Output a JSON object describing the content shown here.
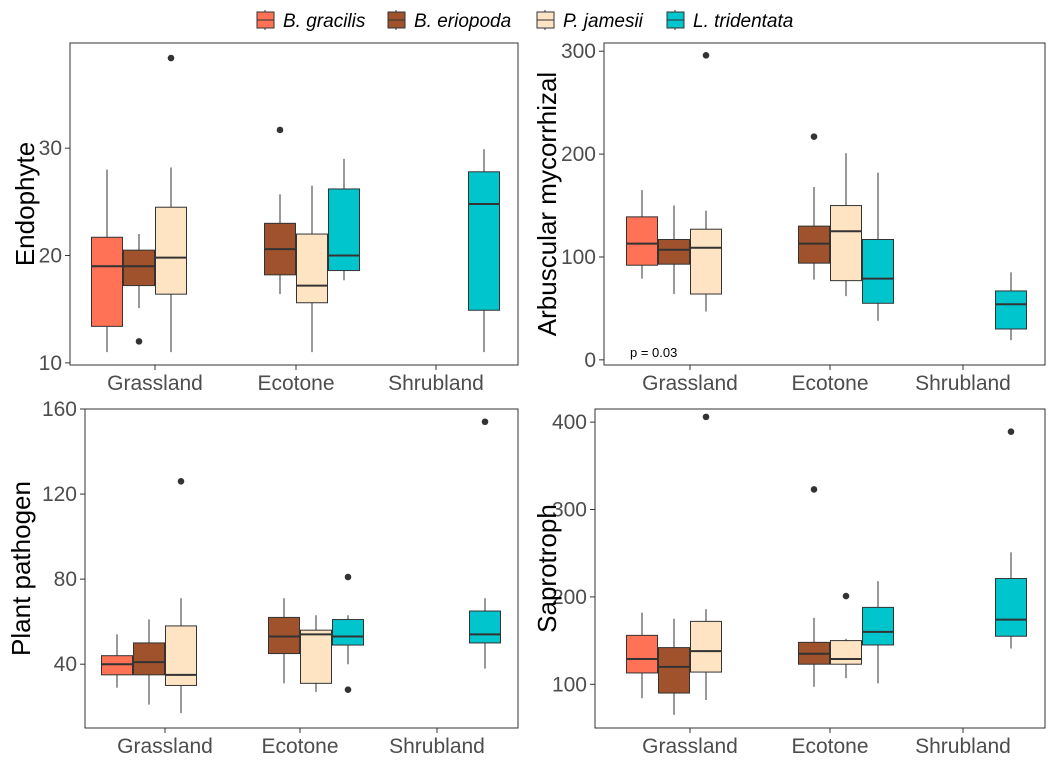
{
  "legend": {
    "items": [
      {
        "label": "B. gracilis",
        "color": "#FF7256"
      },
      {
        "label": "B. eriopoda",
        "color": "#A0522D"
      },
      {
        "label": "P. jamesii",
        "color": "#FFE4C4"
      },
      {
        "label": "L. tridentata",
        "color": "#00C5CD"
      }
    ]
  },
  "chart_data": [
    {
      "type": "box",
      "ylabel": "Endophyte",
      "categories": [
        "Grassland",
        "Ecotone",
        "Shrubland"
      ],
      "ylim": [
        9.8,
        39.8
      ],
      "yticks": [
        10,
        20,
        30
      ],
      "grid": false,
      "annotation": "",
      "boxes": [
        {
          "category": "Grassland",
          "series": "B. gracilis",
          "min": 11,
          "q1": 13.4,
          "median": 19,
          "q3": 21.7,
          "max": 28,
          "outliers": []
        },
        {
          "category": "Grassland",
          "series": "B. eriopoda",
          "min": 15.1,
          "q1": 17.2,
          "median": 19,
          "q3": 20.5,
          "max": 22,
          "outliers": [
            12
          ]
        },
        {
          "category": "Grassland",
          "series": "P. jamesii",
          "min": 11,
          "q1": 16.4,
          "median": 19.8,
          "q3": 24.5,
          "max": 28.2,
          "outliers": [
            38.4
          ]
        },
        {
          "category": "Ecotone",
          "series": "B. eriopoda",
          "min": 16.4,
          "q1": 18.2,
          "median": 20.6,
          "q3": 23,
          "max": 25.7,
          "outliers": [
            31.7
          ]
        },
        {
          "category": "Ecotone",
          "series": "P. jamesii",
          "min": 11,
          "q1": 15.6,
          "median": 17.2,
          "q3": 22,
          "max": 26.5,
          "outliers": []
        },
        {
          "category": "Ecotone",
          "series": "L. tridentata",
          "min": 17.7,
          "q1": 18.6,
          "median": 20,
          "q3": 26.2,
          "max": 29,
          "outliers": []
        },
        {
          "category": "Shrubland",
          "series": "L. tridentata",
          "min": 11,
          "q1": 14.9,
          "median": 24.8,
          "q3": 27.8,
          "max": 29.9,
          "outliers": []
        }
      ]
    },
    {
      "type": "box",
      "ylabel": "Arbuscular mycorrhizal",
      "categories": [
        "Grassland",
        "Ecotone",
        "Shrubland"
      ],
      "ylim": [
        -5,
        308
      ],
      "yticks": [
        0,
        100,
        200,
        300
      ],
      "grid": false,
      "annotation": "p = 0.03",
      "boxes": [
        {
          "category": "Grassland",
          "series": "B. gracilis",
          "min": 79,
          "q1": 92,
          "median": 113,
          "q3": 139,
          "max": 165,
          "outliers": []
        },
        {
          "category": "Grassland",
          "series": "B. eriopoda",
          "min": 64,
          "q1": 93,
          "median": 107,
          "q3": 117,
          "max": 150,
          "outliers": []
        },
        {
          "category": "Grassland",
          "series": "P. jamesii",
          "min": 47,
          "q1": 64,
          "median": 109,
          "q3": 127,
          "max": 145,
          "outliers": [
            296
          ]
        },
        {
          "category": "Ecotone",
          "series": "B. eriopoda",
          "min": 78,
          "q1": 94,
          "median": 113,
          "q3": 130,
          "max": 168,
          "outliers": [
            217
          ]
        },
        {
          "category": "Ecotone",
          "series": "P. jamesii",
          "min": 62,
          "q1": 77,
          "median": 125,
          "q3": 150,
          "max": 201,
          "outliers": []
        },
        {
          "category": "Ecotone",
          "series": "L. tridentata",
          "min": 38,
          "q1": 55,
          "median": 79,
          "q3": 117,
          "max": 182,
          "outliers": []
        },
        {
          "category": "Shrubland",
          "series": "L. tridentata",
          "min": 19,
          "q1": 30,
          "median": 54,
          "q3": 67,
          "max": 85,
          "outliers": []
        }
      ]
    },
    {
      "type": "box",
      "ylabel": "Plant pathogen",
      "categories": [
        "Grassland",
        "Ecotone",
        "Shrubland"
      ],
      "ylim": [
        10,
        160
      ],
      "yticks": [
        40,
        80,
        120,
        160
      ],
      "grid": false,
      "annotation": "",
      "boxes": [
        {
          "category": "Grassland",
          "series": "B. gracilis",
          "min": 29,
          "q1": 35,
          "median": 40,
          "q3": 44,
          "max": 54,
          "outliers": []
        },
        {
          "category": "Grassland",
          "series": "B. eriopoda",
          "min": 21,
          "q1": 35,
          "median": 41,
          "q3": 50,
          "max": 61,
          "outliers": []
        },
        {
          "category": "Grassland",
          "series": "P. jamesii",
          "min": 17,
          "q1": 30,
          "median": 35,
          "q3": 58,
          "max": 71,
          "outliers": [
            126
          ]
        },
        {
          "category": "Ecotone",
          "series": "B. eriopoda",
          "min": 31,
          "q1": 45,
          "median": 53,
          "q3": 62,
          "max": 71,
          "outliers": []
        },
        {
          "category": "Ecotone",
          "series": "P. jamesii",
          "min": 27,
          "q1": 31,
          "median": 54,
          "q3": 56,
          "max": 63,
          "outliers": []
        },
        {
          "category": "Ecotone",
          "series": "L. tridentata",
          "min": 40,
          "q1": 49,
          "median": 53,
          "q3": 61,
          "max": 63,
          "outliers": [
            28,
            81
          ]
        },
        {
          "category": "Shrubland",
          "series": "L. tridentata",
          "min": 38,
          "q1": 50,
          "median": 54,
          "q3": 65,
          "max": 71,
          "outliers": [
            154
          ]
        }
      ]
    },
    {
      "type": "box",
      "ylabel": "Saprotroph",
      "categories": [
        "Grassland",
        "Ecotone",
        "Shrubland"
      ],
      "ylim": [
        50,
        415
      ],
      "yticks": [
        100,
        200,
        300,
        400
      ],
      "grid": false,
      "annotation": "",
      "boxes": [
        {
          "category": "Grassland",
          "series": "B. gracilis",
          "min": 84,
          "q1": 113,
          "median": 129,
          "q3": 156,
          "max": 182,
          "outliers": []
        },
        {
          "category": "Grassland",
          "series": "B. eriopoda",
          "min": 65,
          "q1": 90,
          "median": 120,
          "q3": 142,
          "max": 175,
          "outliers": []
        },
        {
          "category": "Grassland",
          "series": "P. jamesii",
          "min": 82,
          "q1": 114,
          "median": 138,
          "q3": 172,
          "max": 186,
          "outliers": [
            406
          ]
        },
        {
          "category": "Ecotone",
          "series": "B. eriopoda",
          "min": 97,
          "q1": 123,
          "median": 135,
          "q3": 148,
          "max": 176,
          "outliers": [
            323
          ]
        },
        {
          "category": "Ecotone",
          "series": "P. jamesii",
          "min": 107,
          "q1": 123,
          "median": 129,
          "q3": 150,
          "max": 152,
          "outliers": [
            201
          ]
        },
        {
          "category": "Ecotone",
          "series": "L. tridentata",
          "min": 101,
          "q1": 145,
          "median": 160,
          "q3": 188,
          "max": 218,
          "outliers": []
        },
        {
          "category": "Shrubland",
          "series": "L. tridentata",
          "min": 141,
          "q1": 155,
          "median": 174,
          "q3": 221,
          "max": 251,
          "outliers": [
            389
          ]
        }
      ]
    }
  ]
}
